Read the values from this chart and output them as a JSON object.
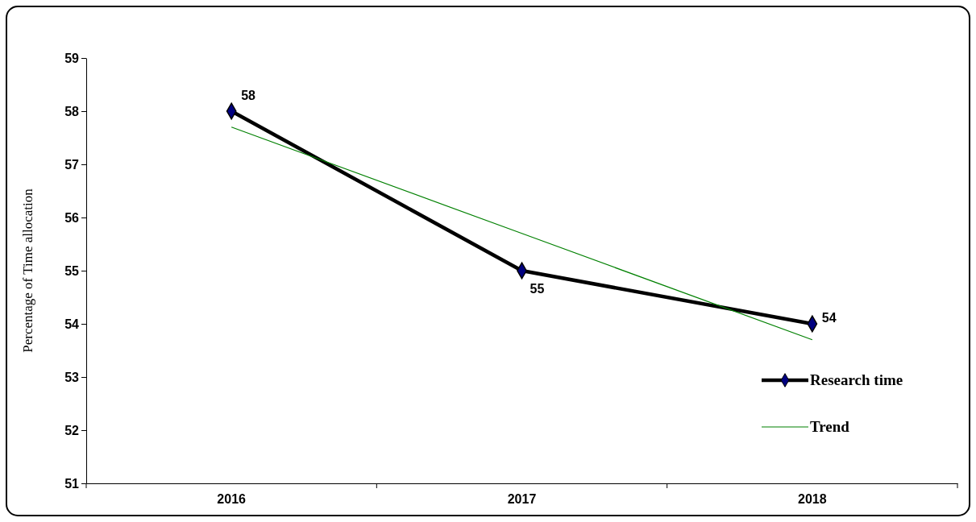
{
  "chart_data": {
    "type": "line",
    "ylabel": "Percentage of Time allocation",
    "categories": [
      "2016",
      "2017",
      "2018"
    ],
    "ylim": [
      51,
      59
    ],
    "yticks": [
      51,
      52,
      53,
      54,
      55,
      56,
      57,
      58,
      59
    ],
    "grid": false,
    "legend": "bottom right",
    "series": [
      {
        "name": "Research time",
        "color": "#000000",
        "marker": "diamond",
        "line_style": "solid",
        "values": [
          58,
          55,
          54
        ],
        "value_labels": [
          "58",
          "55",
          "54"
        ]
      },
      {
        "name": "Trend",
        "color": "#008000",
        "marker": "none",
        "line_style": "solid",
        "values": [
          57.7,
          55.7,
          53.7
        ]
      }
    ]
  }
}
